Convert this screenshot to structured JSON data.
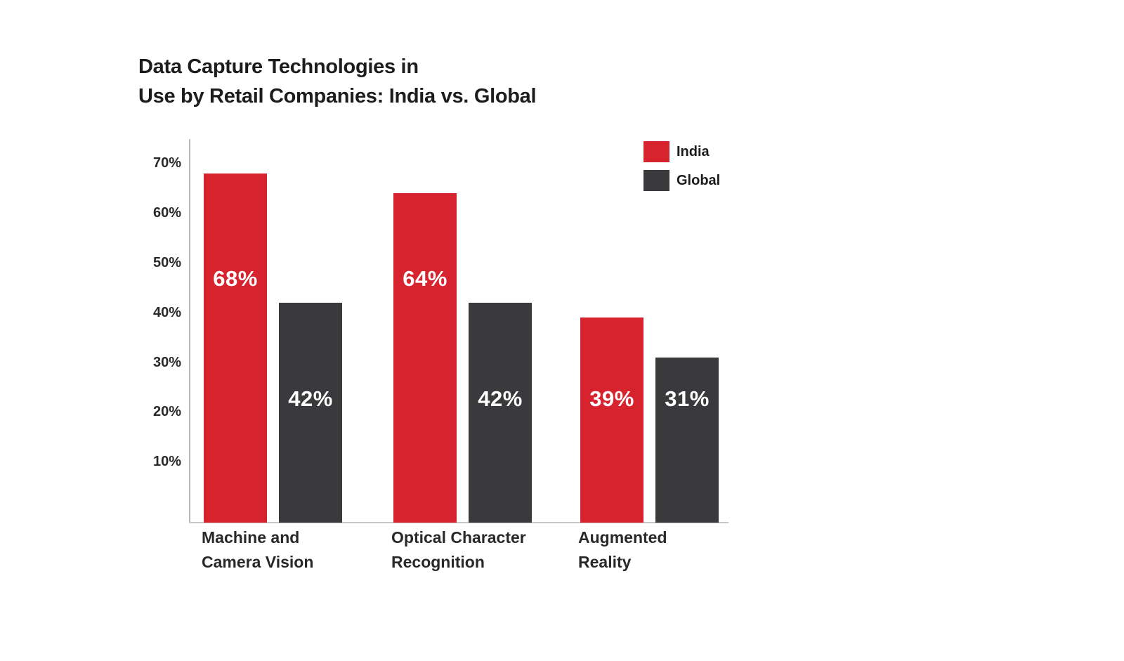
{
  "page": {
    "background_color": "#ffffff"
  },
  "chart_data": {
    "type": "bar",
    "title_lines": [
      "Data Capture Technologies in",
      "Use by Retail Companies: India vs. Global"
    ],
    "categories": [
      [
        "Machine and",
        "Camera Vision"
      ],
      [
        "Optical Character",
        "Recognition"
      ],
      [
        "Augmented",
        "Reality"
      ]
    ],
    "series": [
      {
        "name": "India",
        "color": "#d7232e",
        "values": [
          68,
          64,
          39
        ]
      },
      {
        "name": "Global",
        "color": "#3a3a3c",
        "values": [
          42,
          42,
          31
        ]
      }
    ],
    "value_label_format": "{v}%",
    "y_axis": {
      "ticks": [
        {
          "label": "70%",
          "value": 70
        },
        {
          "label": "60%",
          "value": 60
        },
        {
          "label": "50%",
          "value": 50
        },
        {
          "label": "40%",
          "value": 40
        },
        {
          "label": "30%",
          "value": 30
        },
        {
          "label": "20%",
          "value": 20
        },
        {
          "label": "10%",
          "value": 10
        }
      ],
      "range": [
        0,
        74
      ]
    },
    "xlabel": "",
    "ylabel": "",
    "grid": false,
    "legend_position": "top-right",
    "colors": {
      "value_label_text": "#ffffff",
      "axis_line": "#b9b9ba",
      "title_text": "#1c1c1e"
    }
  }
}
